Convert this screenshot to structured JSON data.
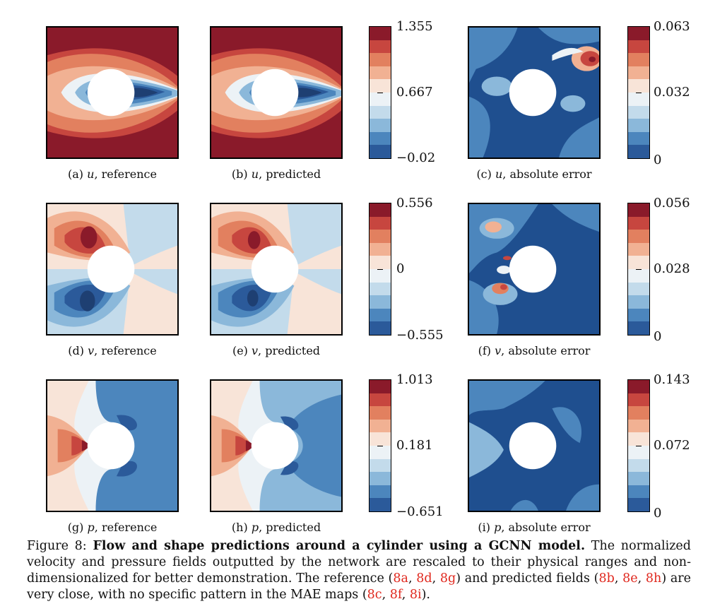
{
  "colors": {
    "scale": [
      "#2b5a9a",
      "#4c86bd",
      "#8bb8da",
      "#c3dbeb",
      "#ecf2f6",
      "#f8e4d8",
      "#f1b193",
      "#e2805f",
      "#c7463f",
      "#8a1a2a"
    ],
    "error_base": "#1f4f8f",
    "citation": "#e0281e"
  },
  "rows": [
    {
      "variable": "u",
      "panels": [
        {
          "letter": "(a)",
          "desc": ", reference"
        },
        {
          "letter": "(b)",
          "desc": ", predicted"
        },
        {
          "letter": "(c)",
          "desc": ", absolute error"
        }
      ],
      "field_colorbar": {
        "max": "1.355",
        "mid": "0.667",
        "min": "−0.02"
      },
      "error_colorbar": {
        "max": "0.063",
        "mid": "0.032",
        "min": "0"
      }
    },
    {
      "variable": "v",
      "panels": [
        {
          "letter": "(d)",
          "desc": ", reference"
        },
        {
          "letter": "(e)",
          "desc": ", predicted"
        },
        {
          "letter": "(f)",
          "desc": ", absolute error"
        }
      ],
      "field_colorbar": {
        "max": "0.556",
        "mid": "0",
        "min": "−0.555"
      },
      "error_colorbar": {
        "max": "0.056",
        "mid": "0.028",
        "min": "0"
      }
    },
    {
      "variable": "p",
      "panels": [
        {
          "letter": "(g)",
          "desc": ", reference"
        },
        {
          "letter": "(h)",
          "desc": ", predicted"
        },
        {
          "letter": "(i)",
          "desc": ", absolute error"
        }
      ],
      "field_colorbar": {
        "max": "1.013",
        "mid": "0.181",
        "min": "−0.651"
      },
      "error_colorbar": {
        "max": "0.143",
        "mid": "0.072",
        "min": "0"
      }
    }
  ],
  "caption": {
    "label": "Figure 8: ",
    "title": "Flow and shape predictions around a cylinder using a GCNN model.",
    "body_1": " The normalized velocity and pressure fields outputted by the network are rescaled to their physical ranges and non-dimensionalized for better demonstration. The reference (",
    "ref_a": "8a",
    "ref_d": "8d",
    "ref_g": "8g",
    "body_2": ") and predicted fields (",
    "ref_b": "8b",
    "ref_e": "8e",
    "ref_h": "8h",
    "body_3": ") are very close, with no specific pattern in the MAE maps (",
    "ref_c": "8c",
    "ref_f": "8f",
    "ref_i": "8i",
    "body_4": ").",
    "sep": ", "
  }
}
